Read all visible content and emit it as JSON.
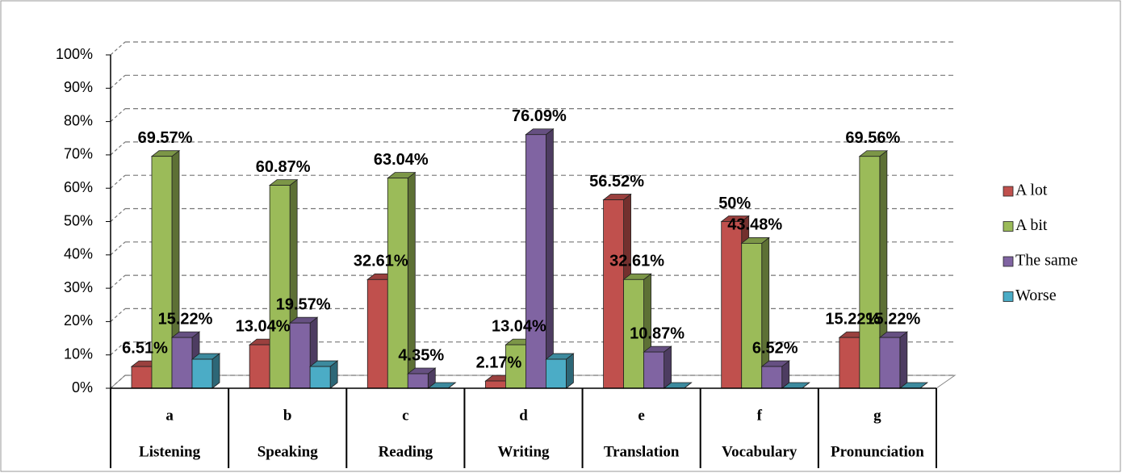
{
  "chart_data": {
    "type": "bar3d",
    "categories": [
      "a",
      "b",
      "c",
      "d",
      "e",
      "f",
      "g"
    ],
    "category_names": [
      "Listening",
      "Speaking",
      "Reading",
      "Writing",
      "Translation",
      "Vocabulary",
      "Pronunciation"
    ],
    "series": [
      {
        "name": "A lot",
        "color": "#c0504d",
        "values": [
          6.51,
          13.04,
          32.61,
          2.17,
          56.52,
          50,
          15.22
        ],
        "value_labels": [
          "6.51%",
          "13.04%",
          "32.61%",
          "2.17%",
          "56.52%",
          "50%",
          "15.22%"
        ]
      },
      {
        "name": "A bit",
        "color": "#9bbb59",
        "values": [
          69.57,
          60.87,
          63.04,
          13.04,
          32.61,
          43.48,
          69.56
        ],
        "value_labels": [
          "69.57%",
          "60.87%",
          "63.04%",
          "13.04%",
          "32.61%",
          "43.48%",
          "69.56%"
        ]
      },
      {
        "name": "The same",
        "color": "#8064a2",
        "values": [
          15.22,
          19.57,
          4.35,
          76.09,
          10.87,
          6.52,
          15.22
        ],
        "value_labels": [
          "15.22%",
          "19.57%",
          "4.35%",
          "76.09%",
          "10.87%",
          "6.52%",
          "15.22%"
        ]
      },
      {
        "name": "Worse",
        "color": "#4bacc6",
        "values": [
          8.7,
          6.52,
          0,
          8.7,
          0,
          0,
          0
        ],
        "value_labels": [
          null,
          null,
          null,
          null,
          null,
          null,
          null
        ]
      }
    ],
    "ylim": [
      0,
      100
    ],
    "yticks": [
      {
        "value": 0,
        "label": "0%"
      },
      {
        "value": 10,
        "label": "10%"
      },
      {
        "value": 20,
        "label": "20%"
      },
      {
        "value": 30,
        "label": "30%"
      },
      {
        "value": 40,
        "label": "40%"
      },
      {
        "value": 50,
        "label": "50%"
      },
      {
        "value": 60,
        "label": "60%"
      },
      {
        "value": 70,
        "label": "70%"
      },
      {
        "value": 80,
        "label": "80%"
      },
      {
        "value": 90,
        "label": "90%"
      },
      {
        "value": 100,
        "label": "100%"
      }
    ],
    "grid": true,
    "legend": "right"
  }
}
